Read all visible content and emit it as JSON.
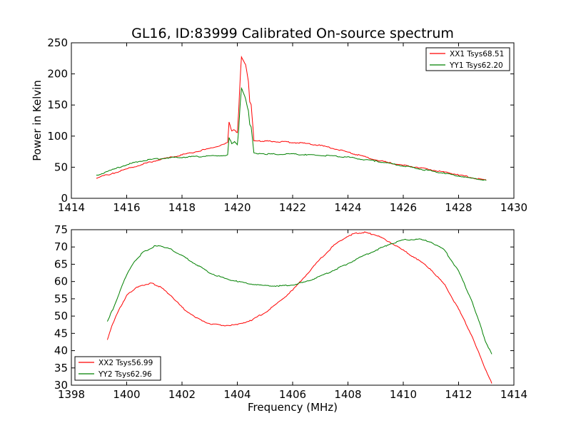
{
  "chart_data": [
    {
      "type": "line",
      "title": "GL16, ID:83999 Calibrated On-source spectrum",
      "xlabel": "",
      "ylabel": "Power in Kelvin",
      "xlim": [
        1414,
        1430
      ],
      "ylim": [
        0,
        250
      ],
      "xticks": [
        1414,
        1416,
        1418,
        1420,
        1422,
        1424,
        1426,
        1428,
        1430
      ],
      "yticks": [
        0,
        50,
        100,
        150,
        200,
        250
      ],
      "grid": false,
      "legend": "top-right",
      "series": [
        {
          "name": "XX1 Tsys68.51",
          "color": "#ff0000",
          "x": [
            1414.9,
            1415.5,
            1416.0,
            1416.5,
            1417.0,
            1417.5,
            1418.0,
            1418.5,
            1419.0,
            1419.5,
            1419.65,
            1419.7,
            1419.8,
            1419.9,
            1420.0,
            1420.05,
            1420.1,
            1420.15,
            1420.2,
            1420.3,
            1420.4,
            1420.45,
            1420.5,
            1420.6,
            1420.8,
            1421.0,
            1421.5,
            1422.0,
            1422.5,
            1423.0,
            1423.5,
            1424.0,
            1424.5,
            1425.0,
            1425.5,
            1426.0,
            1426.5,
            1427.0,
            1427.5,
            1428.0,
            1428.5,
            1429.0
          ],
          "y": [
            33,
            40,
            47,
            54,
            60,
            65,
            70,
            75,
            80,
            86,
            90,
            122,
            108,
            110,
            106,
            140,
            190,
            228,
            222,
            215,
            188,
            155,
            150,
            93,
            92,
            92,
            91,
            90,
            88,
            85,
            80,
            74,
            68,
            62,
            57,
            53,
            50,
            46,
            42,
            38,
            33,
            29
          ]
        },
        {
          "name": "YY1 Tsys62.20",
          "color": "#008000",
          "x": [
            1414.9,
            1415.5,
            1416.0,
            1416.5,
            1417.0,
            1417.5,
            1418.0,
            1418.5,
            1419.0,
            1419.5,
            1419.65,
            1419.7,
            1419.8,
            1419.9,
            1420.0,
            1420.05,
            1420.1,
            1420.15,
            1420.2,
            1420.3,
            1420.4,
            1420.45,
            1420.5,
            1420.6,
            1420.8,
            1421.0,
            1421.5,
            1422.0,
            1422.5,
            1423.0,
            1423.5,
            1424.0,
            1424.5,
            1425.0,
            1425.5,
            1426.0,
            1426.5,
            1427.0,
            1427.5,
            1428.0,
            1428.5,
            1429.0
          ],
          "y": [
            37,
            46,
            54,
            60,
            63,
            65,
            66,
            67,
            68,
            69,
            70,
            97,
            88,
            92,
            86,
            110,
            150,
            176,
            172,
            160,
            140,
            118,
            115,
            73,
            72,
            71,
            71,
            71,
            70,
            69,
            68,
            66,
            63,
            60,
            56,
            52,
            48,
            44,
            40,
            36,
            32,
            29
          ]
        }
      ]
    },
    {
      "type": "line",
      "title": "",
      "xlabel": "Frequency (MHz)",
      "ylabel": "",
      "xlim": [
        1398,
        1414
      ],
      "ylim": [
        30,
        75
      ],
      "xticks": [
        1398,
        1400,
        1402,
        1404,
        1406,
        1408,
        1410,
        1412,
        1414
      ],
      "yticks": [
        30,
        35,
        40,
        45,
        50,
        55,
        60,
        65,
        70,
        75
      ],
      "grid": false,
      "legend": "bottom-left",
      "series": [
        {
          "name": "XX2 Tsys56.99",
          "color": "#ff0000",
          "x": [
            1399.3,
            1399.5,
            1399.8,
            1400.0,
            1400.3,
            1400.6,
            1400.9,
            1401.2,
            1401.6,
            1402.0,
            1402.5,
            1403.0,
            1403.5,
            1404.0,
            1404.5,
            1405.0,
            1405.5,
            1406.0,
            1406.5,
            1407.0,
            1407.5,
            1408.0,
            1408.3,
            1408.6,
            1409.0,
            1409.5,
            1410.0,
            1410.5,
            1411.0,
            1411.5,
            1412.0,
            1412.5,
            1412.8,
            1413.0,
            1413.2
          ],
          "y": [
            43,
            48,
            53,
            56,
            58,
            59,
            59.5,
            58.5,
            56,
            52.5,
            49.5,
            47.8,
            47.3,
            47.5,
            48.8,
            51,
            54,
            57.5,
            62,
            66.5,
            70.5,
            73.2,
            74,
            74.2,
            73.5,
            71.5,
            69,
            66.5,
            63.5,
            59,
            52,
            44,
            38,
            34,
            30.5
          ]
        },
        {
          "name": "YY2 Tsys62.96",
          "color": "#008000",
          "x": [
            1399.3,
            1399.5,
            1399.8,
            1400.0,
            1400.3,
            1400.6,
            1401.0,
            1401.3,
            1401.6,
            1402.0,
            1402.5,
            1403.0,
            1403.5,
            1404.0,
            1404.5,
            1405.0,
            1405.5,
            1406.0,
            1406.5,
            1407.0,
            1407.5,
            1408.0,
            1408.5,
            1409.0,
            1409.5,
            1410.0,
            1410.5,
            1411.0,
            1411.5,
            1412.0,
            1412.5,
            1412.8,
            1413.0,
            1413.2
          ],
          "y": [
            48.5,
            52,
            58,
            62,
            66,
            68.5,
            70.2,
            70.2,
            69.3,
            67.5,
            65,
            62.5,
            61,
            60,
            59.3,
            58.8,
            58.7,
            59,
            60,
            61.5,
            63.3,
            65.2,
            67.2,
            69,
            70.8,
            72,
            72.3,
            71.5,
            69,
            63,
            54,
            47,
            42,
            39
          ]
        }
      ]
    }
  ]
}
